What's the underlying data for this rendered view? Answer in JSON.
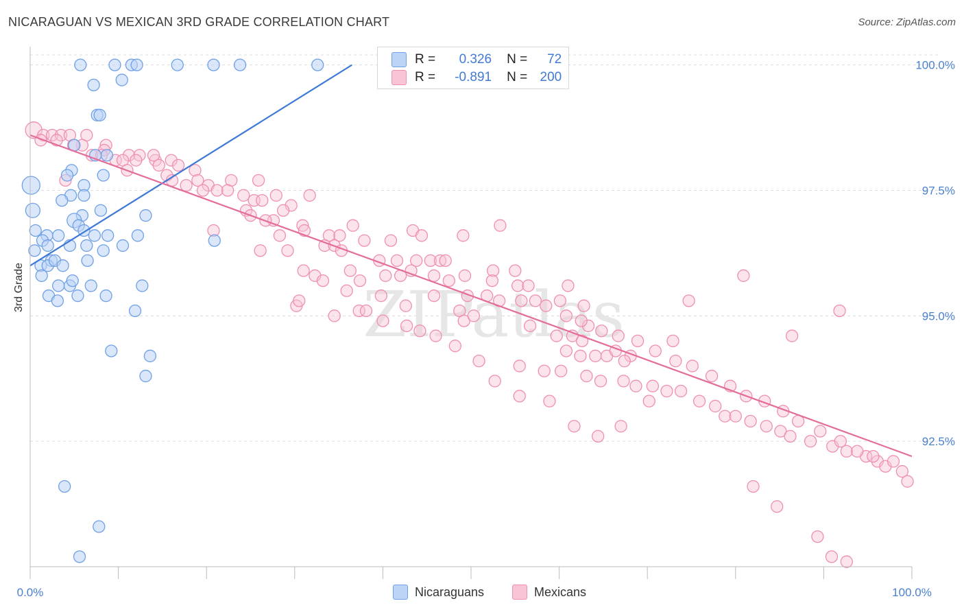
{
  "title": "NICARAGUAN VS MEXICAN 3RD GRADE CORRELATION CHART",
  "source": "Source: ZipAtlas.com",
  "watermark": "ZIPatlas",
  "stats": [
    {
      "r_label": "R =",
      "r_value": "0.326",
      "n_label": "N =",
      "n_value": "72",
      "color": "#6fa0e6",
      "fill": "#bcd4f6"
    },
    {
      "r_label": "R =",
      "r_value": "-0.891",
      "n_label": "N =",
      "n_value": "200",
      "color": "#ef8fb0",
      "fill": "#f9c4d6"
    }
  ],
  "legend": [
    {
      "label": "Nicaraguans",
      "color": "#6fa0e6",
      "fill": "#bcd4f6"
    },
    {
      "label": "Mexicans",
      "color": "#ef8fb0",
      "fill": "#f9c4d6"
    }
  ],
  "chart_data": {
    "type": "scatter",
    "title": "NICARAGUAN VS MEXICAN 3RD GRADE CORRELATION CHART",
    "xlabel": "",
    "ylabel": "3rd Grade",
    "xlim": [
      0,
      100
    ],
    "ylim": [
      90.0,
      100.2
    ],
    "x_tick_labels": [
      {
        "value": 0,
        "label": "0.0%"
      },
      {
        "value": 100,
        "label": "100.0%"
      }
    ],
    "y_tick_labels": [
      {
        "value": 100.0,
        "label": "100.0%"
      },
      {
        "value": 97.5,
        "label": "97.5%"
      },
      {
        "value": 95.0,
        "label": "95.0%"
      },
      {
        "value": 92.5,
        "label": "92.5%"
      }
    ],
    "series": [
      {
        "name": "Nicaraguans",
        "color": "#3c78d8",
        "trend": {
          "x": [
            0,
            36.5
          ],
          "y": [
            96.0,
            100.0
          ]
        },
        "points": [
          [
            5.7,
            100.0
          ],
          [
            9.6,
            100.0
          ],
          [
            11.5,
            100.0
          ],
          [
            12.1,
            100.0
          ],
          [
            16.7,
            100.0
          ],
          [
            20.8,
            100.0
          ],
          [
            23.8,
            100.0
          ],
          [
            32.6,
            100.0
          ],
          [
            7.2,
            99.6
          ],
          [
            10.4,
            99.7
          ],
          [
            7.6,
            99.0
          ],
          [
            7.9,
            99.0
          ],
          [
            5.0,
            98.4
          ],
          [
            8.7,
            98.2
          ],
          [
            7.4,
            98.2
          ],
          [
            4.7,
            97.9
          ],
          [
            4.2,
            97.8
          ],
          [
            0.1,
            97.6
          ],
          [
            6.1,
            97.6
          ],
          [
            8.3,
            97.8
          ],
          [
            4.6,
            97.4
          ],
          [
            6.1,
            97.4
          ],
          [
            3.6,
            97.3
          ],
          [
            0.3,
            97.1
          ],
          [
            5.9,
            97.0
          ],
          [
            8.0,
            97.1
          ],
          [
            13.1,
            97.0
          ],
          [
            5.0,
            96.9
          ],
          [
            5.5,
            96.8
          ],
          [
            6.1,
            96.7
          ],
          [
            0.6,
            96.7
          ],
          [
            1.9,
            96.6
          ],
          [
            3.2,
            96.6
          ],
          [
            7.3,
            96.6
          ],
          [
            8.8,
            96.6
          ],
          [
            12.2,
            96.6
          ],
          [
            1.4,
            96.5
          ],
          [
            20.9,
            96.5
          ],
          [
            2.0,
            96.4
          ],
          [
            4.5,
            96.4
          ],
          [
            6.4,
            96.4
          ],
          [
            8.3,
            96.3
          ],
          [
            10.5,
            96.4
          ],
          [
            0.5,
            96.3
          ],
          [
            2.4,
            96.1
          ],
          [
            1.2,
            96.0
          ],
          [
            2.0,
            96.0
          ],
          [
            2.8,
            96.1
          ],
          [
            3.7,
            96.0
          ],
          [
            6.5,
            96.1
          ],
          [
            1.3,
            95.8
          ],
          [
            4.5,
            95.6
          ],
          [
            4.8,
            95.7
          ],
          [
            3.2,
            95.6
          ],
          [
            6.9,
            95.6
          ],
          [
            12.7,
            95.6
          ],
          [
            2.1,
            95.4
          ],
          [
            5.4,
            95.4
          ],
          [
            8.6,
            95.4
          ],
          [
            3.1,
            95.3
          ],
          [
            11.9,
            95.1
          ],
          [
            9.2,
            94.3
          ],
          [
            13.6,
            94.2
          ],
          [
            13.1,
            93.8
          ],
          [
            3.9,
            91.6
          ],
          [
            7.8,
            90.8
          ],
          [
            5.6,
            90.2
          ]
        ]
      },
      {
        "name": "Mexicans",
        "color": "#e36c9b",
        "trend": {
          "x": [
            0,
            100
          ],
          "y": [
            98.6,
            92.2
          ]
        },
        "points": [
          [
            0.4,
            98.7
          ],
          [
            1.5,
            98.6
          ],
          [
            2.5,
            98.6
          ],
          [
            3.5,
            98.6
          ],
          [
            4.5,
            98.6
          ],
          [
            6.4,
            98.6
          ],
          [
            1.2,
            98.5
          ],
          [
            3.0,
            98.5
          ],
          [
            5.9,
            98.4
          ],
          [
            8.6,
            98.4
          ],
          [
            4.9,
            98.4
          ],
          [
            8.4,
            98.3
          ],
          [
            7.0,
            98.2
          ],
          [
            11.2,
            98.2
          ],
          [
            8.1,
            98.2
          ],
          [
            12.4,
            98.2
          ],
          [
            14.2,
            98.1
          ],
          [
            14.0,
            98.2
          ],
          [
            9.7,
            98.1
          ],
          [
            10.5,
            98.1
          ],
          [
            12.0,
            98.1
          ],
          [
            16.0,
            98.1
          ],
          [
            16.8,
            98.0
          ],
          [
            14.6,
            98.0
          ],
          [
            18.7,
            97.9
          ],
          [
            11.0,
            97.9
          ],
          [
            4.0,
            97.7
          ],
          [
            15.5,
            97.8
          ],
          [
            16.1,
            97.7
          ],
          [
            19.0,
            97.7
          ],
          [
            20.2,
            97.6
          ],
          [
            22.8,
            97.7
          ],
          [
            25.9,
            97.7
          ],
          [
            17.7,
            97.6
          ],
          [
            19.6,
            97.5
          ],
          [
            21.2,
            97.5
          ],
          [
            22.4,
            97.5
          ],
          [
            24.2,
            97.4
          ],
          [
            27.9,
            97.4
          ],
          [
            31.7,
            97.4
          ],
          [
            25.4,
            97.3
          ],
          [
            26.3,
            97.3
          ],
          [
            29.6,
            97.2
          ],
          [
            24.5,
            97.1
          ],
          [
            28.7,
            97.1
          ],
          [
            25.0,
            97.0
          ],
          [
            27.6,
            96.9
          ],
          [
            26.7,
            96.9
          ],
          [
            30.9,
            96.8
          ],
          [
            36.6,
            96.8
          ],
          [
            20.8,
            96.7
          ],
          [
            31.1,
            96.7
          ],
          [
            33.9,
            96.6
          ],
          [
            35.1,
            96.6
          ],
          [
            37.9,
            96.5
          ],
          [
            40.9,
            96.5
          ],
          [
            43.4,
            96.7
          ],
          [
            28.3,
            96.6
          ],
          [
            33.4,
            96.4
          ],
          [
            34.5,
            96.4
          ],
          [
            35.3,
            96.3
          ],
          [
            26.1,
            96.3
          ],
          [
            29.2,
            96.3
          ],
          [
            44.4,
            96.6
          ],
          [
            49.1,
            96.6
          ],
          [
            43.8,
            96.1
          ],
          [
            39.6,
            96.1
          ],
          [
            41.6,
            96.1
          ],
          [
            45.4,
            96.1
          ],
          [
            46.5,
            96.1
          ],
          [
            47.1,
            96.1
          ],
          [
            43.2,
            95.9
          ],
          [
            42.0,
            95.8
          ],
          [
            36.3,
            95.9
          ],
          [
            40.3,
            95.8
          ],
          [
            45.8,
            95.8
          ],
          [
            49.3,
            95.8
          ],
          [
            52.5,
            95.9
          ],
          [
            55.0,
            95.9
          ],
          [
            47.5,
            95.7
          ],
          [
            52.4,
            95.7
          ],
          [
            55.3,
            95.6
          ],
          [
            61.0,
            95.6
          ],
          [
            32.3,
            95.8
          ],
          [
            37.4,
            95.7
          ],
          [
            39.8,
            95.4
          ],
          [
            45.8,
            95.4
          ],
          [
            49.6,
            95.4
          ],
          [
            51.8,
            95.4
          ],
          [
            53.2,
            95.3
          ],
          [
            55.7,
            95.3
          ],
          [
            57.3,
            95.3
          ],
          [
            60.1,
            95.3
          ],
          [
            62.8,
            95.2
          ],
          [
            42.6,
            95.2
          ],
          [
            48.7,
            95.1
          ],
          [
            37.3,
            95.1
          ],
          [
            30.2,
            95.2
          ],
          [
            30.5,
            95.3
          ],
          [
            34.5,
            95.0
          ],
          [
            49.2,
            94.9
          ],
          [
            50.3,
            95.0
          ],
          [
            56.7,
            94.8
          ],
          [
            59.7,
            94.6
          ],
          [
            61.5,
            94.6
          ],
          [
            62.6,
            94.5
          ],
          [
            63.3,
            94.8
          ],
          [
            60.8,
            94.3
          ],
          [
            62.4,
            94.2
          ],
          [
            64.1,
            94.2
          ],
          [
            65.4,
            94.2
          ],
          [
            66.4,
            94.3
          ],
          [
            68.1,
            94.2
          ],
          [
            67.4,
            94.1
          ],
          [
            55.5,
            94.0
          ],
          [
            58.3,
            93.9
          ],
          [
            60.2,
            93.9
          ],
          [
            63.1,
            93.8
          ],
          [
            64.7,
            93.7
          ],
          [
            67.3,
            93.7
          ],
          [
            68.7,
            93.6
          ],
          [
            70.6,
            93.6
          ],
          [
            72.2,
            93.5
          ],
          [
            73.8,
            93.5
          ],
          [
            75.9,
            93.3
          ],
          [
            77.7,
            93.2
          ],
          [
            78.8,
            93.0
          ],
          [
            80.0,
            93.0
          ],
          [
            81.7,
            92.9
          ],
          [
            83.5,
            92.8
          ],
          [
            85.1,
            92.7
          ],
          [
            86.2,
            92.6
          ],
          [
            88.5,
            92.5
          ],
          [
            91.0,
            92.4
          ],
          [
            92.6,
            92.3
          ],
          [
            94.8,
            92.2
          ],
          [
            96.1,
            92.1
          ],
          [
            97.0,
            92.0
          ],
          [
            98.9,
            91.9
          ],
          [
            82.0,
            91.6
          ],
          [
            84.7,
            91.2
          ],
          [
            89.3,
            90.6
          ],
          [
            90.9,
            90.2
          ],
          [
            92.6,
            90.1
          ],
          [
            53.3,
            96.8
          ],
          [
            56.5,
            95.6
          ],
          [
            58.5,
            95.2
          ],
          [
            60.8,
            95.0
          ],
          [
            62.5,
            94.9
          ],
          [
            64.8,
            94.7
          ],
          [
            66.7,
            94.6
          ],
          [
            68.9,
            94.5
          ],
          [
            70.9,
            94.3
          ],
          [
            73.2,
            94.1
          ],
          [
            75.1,
            94.0
          ],
          [
            77.3,
            93.8
          ],
          [
            79.4,
            93.6
          ],
          [
            81.2,
            93.4
          ],
          [
            83.3,
            93.3
          ],
          [
            85.4,
            93.1
          ],
          [
            87.1,
            92.9
          ],
          [
            89.6,
            92.7
          ],
          [
            91.9,
            92.5
          ],
          [
            93.8,
            92.3
          ],
          [
            95.6,
            92.2
          ],
          [
            97.9,
            92.1
          ],
          [
            99.5,
            91.7
          ],
          [
            91.8,
            95.1
          ],
          [
            86.4,
            94.6
          ],
          [
            80.9,
            95.8
          ],
          [
            74.7,
            95.3
          ],
          [
            72.9,
            94.5
          ],
          [
            70.2,
            93.3
          ],
          [
            67.0,
            92.8
          ],
          [
            64.4,
            92.6
          ],
          [
            61.7,
            92.8
          ],
          [
            58.9,
            93.3
          ],
          [
            55.5,
            93.4
          ],
          [
            52.7,
            93.7
          ],
          [
            50.9,
            94.1
          ],
          [
            48.2,
            94.4
          ],
          [
            46.0,
            94.6
          ],
          [
            44.2,
            94.7
          ],
          [
            42.7,
            94.8
          ],
          [
            40.0,
            94.9
          ],
          [
            38.1,
            95.1
          ],
          [
            35.9,
            95.5
          ],
          [
            33.2,
            95.7
          ],
          [
            31.0,
            95.9
          ]
        ]
      }
    ]
  }
}
